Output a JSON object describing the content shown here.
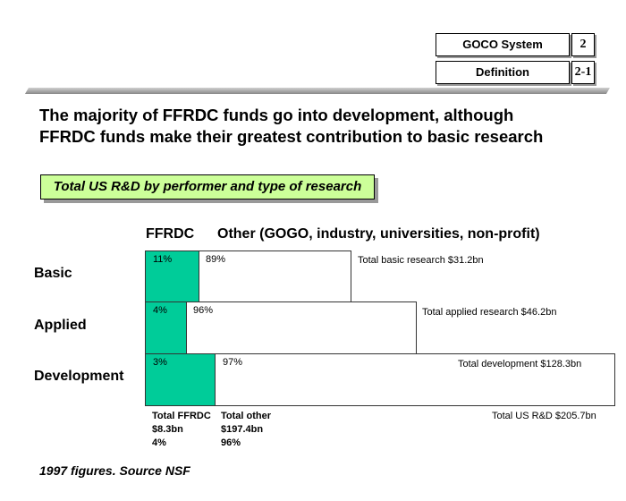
{
  "header": {
    "section": "GOCO System",
    "section_num": "2",
    "page": "Definition",
    "page_num": "2-1"
  },
  "headline": [
    "The majority of FFRDC funds go into development, although",
    "FFRDC funds make their greatest contribution to basic research"
  ],
  "chart_data": {
    "type": "bar",
    "title": "Total US R&D by performer and type of research",
    "column_headers": {
      "ffrdc": "FFRDC",
      "other": "Other (GOGO, industry, universities, non-profit)"
    },
    "categories": [
      "Basic",
      "Applied",
      "Development"
    ],
    "series": [
      {
        "name": "FFRDC",
        "values": [
          11,
          4,
          3
        ],
        "labels": [
          "11%",
          "4%",
          "3%"
        ],
        "color": "#00cc99"
      },
      {
        "name": "Other",
        "values": [
          89,
          96,
          97
        ],
        "labels": [
          "89%",
          "96%",
          "97%"
        ],
        "color": "#ffffff"
      }
    ],
    "row_totals": [
      {
        "label": "Total basic research $31.2bn",
        "value_bn": 31.2
      },
      {
        "label": "Total applied research $46.2bn",
        "value_bn": 46.2
      },
      {
        "label": "Total development $128.3bn",
        "value_bn": 128.3
      }
    ],
    "footer": {
      "ffrdc": [
        "Total FFRDC",
        "$8.3bn",
        "4%"
      ],
      "other": [
        "Total other",
        "$197.4bn",
        "96%"
      ],
      "total": "Total US R&D $205.7bn"
    }
  },
  "source": "1997 figures. Source NSF"
}
